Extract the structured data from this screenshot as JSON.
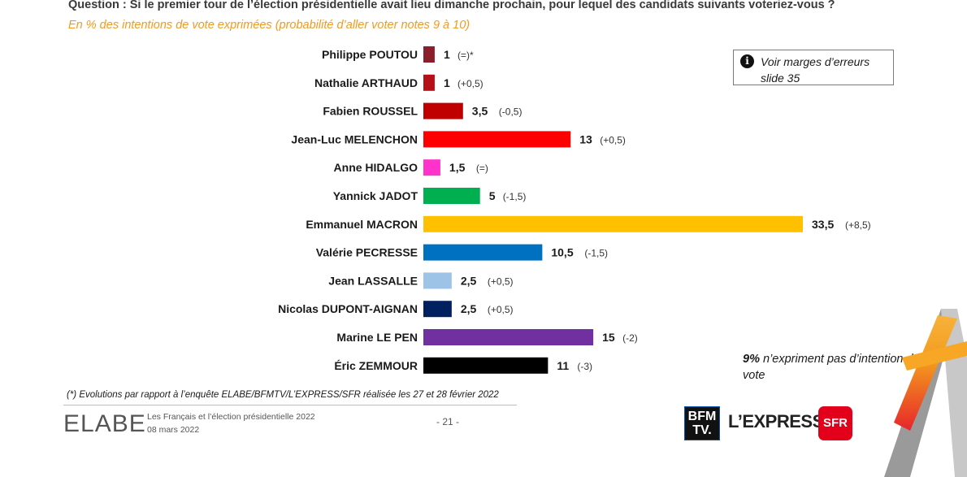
{
  "header": {
    "question": "Question : Si le premier tour de l’élection présidentielle avait lieu dimanche prochain, pour lequel des candidats suivants voteriez-vous ?",
    "subtitle": "En % des intentions de vote exprimées (probabilité d’aller voter notes 9 à 10)"
  },
  "note_box": {
    "icon": "info-icon",
    "icon_glyph": "i",
    "text": "Voir marges d’erreurs slide 35"
  },
  "non_expressed": {
    "value": "9%",
    "text": "n’expriment pas d’intention de vote"
  },
  "chart_data": {
    "type": "bar",
    "orientation": "horizontal",
    "categories": [
      "Philippe POUTOU",
      "Nathalie ARTHAUD",
      "Fabien ROUSSEL",
      "Jean-Luc MELENCHON",
      "Anne HIDALGO",
      "Yannick JADOT",
      "Emmanuel MACRON",
      "Valérie PECRESSE",
      "Jean LASSALLE",
      "Nicolas DUPONT-AIGNAN",
      "Marine LE PEN",
      "Éric ZEMMOUR"
    ],
    "values": [
      1,
      1,
      3.5,
      13,
      1.5,
      5,
      33.5,
      10.5,
      2.5,
      2.5,
      15,
      11
    ],
    "value_labels": [
      "1",
      "1",
      "3,5",
      "13",
      "1,5",
      "5",
      "33,5",
      "10,5",
      "2,5",
      "2,5",
      "15",
      "11"
    ],
    "changes": [
      "(=)*",
      "(+0,5)",
      "(-0,5)",
      "(+0,5)",
      "(=)",
      "(-1,5)",
      "(+8,5)",
      "(-1,5)",
      "(+0,5)",
      "(+0,5)",
      "(-2)",
      "(-3)"
    ],
    "colors": [
      "#8b1e2b",
      "#b70f17",
      "#c00000",
      "#ff0000",
      "#ff33cc",
      "#00b050",
      "#ffc000",
      "#0070c0",
      "#9dc3e6",
      "#002060",
      "#7030a0",
      "#000000"
    ],
    "xlim": [
      0,
      33.5
    ]
  },
  "footer": {
    "footnote": "(*) Evolutions par rapport à l’enquête ELABE/BFMTV/L’EXPRESS/SFR réalisée les 27 et 28 février 2022",
    "logo": "ELABE",
    "study_title": "Les Français et l’élection présidentielle 2022",
    "date": "08 mars 2022",
    "page": "- 21 -",
    "partner_bfm_line1": "BFM",
    "partner_bfm_line2": "TV.",
    "partner_express": "L’EXPRESS",
    "partner_sfr": "SFR"
  }
}
